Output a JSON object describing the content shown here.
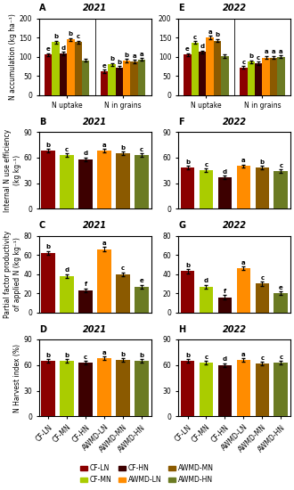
{
  "chart_data": [
    {
      "type": "bar",
      "title": "2021",
      "annotations": [
        "A"
      ],
      "y_label": "N accumulation (kg ha⁻¹)",
      "categories": [
        "N uptake",
        "N in grains"
      ],
      "series": [
        {
          "name": "CF-LN",
          "color": "#8B0000",
          "values": [
            105,
            62
          ],
          "errors": [
            4,
            4
          ],
          "letters": [
            "e",
            "e"
          ]
        },
        {
          "name": "CF-MN",
          "color": "#AACC00",
          "values": [
            138,
            80
          ],
          "errors": [
            4,
            4
          ],
          "letters": [
            "b",
            "b"
          ]
        },
        {
          "name": "CF-HN",
          "color": "#3D0000",
          "values": [
            108,
            72
          ],
          "errors": [
            4,
            4
          ],
          "letters": [
            "d",
            "b"
          ]
        },
        {
          "name": "AWMD-LN",
          "color": "#FF8C00",
          "values": [
            145,
            90
          ],
          "errors": [
            4,
            4
          ],
          "letters": [
            "b",
            "b"
          ]
        },
        {
          "name": "AWMD-MN",
          "color": "#8B5A00",
          "values": [
            138,
            88
          ],
          "errors": [
            4,
            4
          ],
          "letters": [
            "c",
            "a"
          ]
        },
        {
          "name": "AWMD-HN",
          "color": "#6B7B23",
          "values": [
            91,
            93
          ],
          "errors": [
            4,
            4
          ],
          "letters": [
            null,
            "a"
          ]
        }
      ],
      "ylim": [
        0,
        200
      ],
      "yticks": [
        0,
        50,
        100,
        150,
        200
      ],
      "grid": false,
      "legend": "lower center"
    },
    {
      "type": "bar",
      "title": "2022",
      "annotations": [
        "E"
      ],
      "categories": [
        "N uptake",
        "N in grains"
      ],
      "series": [
        {
          "name": "CF-LN",
          "color": "#8B0000",
          "values": [
            105,
            72
          ],
          "errors": [
            4,
            4
          ],
          "letters": [
            "e",
            "c"
          ]
        },
        {
          "name": "CF-MN",
          "color": "#AACC00",
          "values": [
            137,
            87
          ],
          "errors": [
            4,
            4
          ],
          "letters": [
            "c",
            "b"
          ]
        },
        {
          "name": "CF-HN",
          "color": "#3D0000",
          "values": [
            112,
            83
          ],
          "errors": [
            4,
            4
          ],
          "letters": [
            "d",
            "c"
          ]
        },
        {
          "name": "AWMD-LN",
          "color": "#FF8C00",
          "values": [
            150,
            98
          ],
          "errors": [
            4,
            4
          ],
          "letters": [
            "a",
            "a"
          ]
        },
        {
          "name": "AWMD-MN",
          "color": "#8B5A00",
          "values": [
            142,
            98
          ],
          "errors": [
            4,
            4
          ],
          "letters": [
            "b",
            "a"
          ]
        },
        {
          "name": "AWMD-HN",
          "color": "#6B7B23",
          "values": [
            102,
            100
          ],
          "errors": [
            4,
            4
          ],
          "letters": [
            null,
            "a"
          ]
        }
      ],
      "ylim": [
        0,
        200
      ],
      "yticks": [
        0,
        50,
        100,
        150,
        200
      ],
      "grid": false
    },
    {
      "type": "bar",
      "title": "2021",
      "annotations": [
        "B"
      ],
      "y_label": "Internal N use efficiency\n(kg kg⁻¹)",
      "categories": [
        null,
        null,
        null,
        null,
        null,
        null
      ],
      "tick_labels": "y",
      "values": [
        68,
        63,
        58,
        68,
        65,
        63
      ],
      "errors": [
        2,
        2,
        2,
        2,
        2,
        2
      ],
      "letters": [
        "b",
        "c",
        "d",
        "a",
        "b",
        "c"
      ],
      "colors": [
        "#8B0000",
        "#AACC00",
        "#3D0000",
        "#FF8C00",
        "#8B5A00",
        "#6B7B23"
      ],
      "ylim": [
        0,
        90
      ],
      "yticks": [
        0,
        30,
        60,
        90
      ],
      "grid": false
    },
    {
      "type": "bar",
      "title": "2022",
      "annotations": [
        "F"
      ],
      "categories": [
        null,
        null,
        null,
        null,
        null,
        null
      ],
      "tick_labels": "y",
      "values": [
        48,
        45,
        37,
        50,
        48,
        44
      ],
      "errors": [
        2,
        2,
        2,
        2,
        2,
        2
      ],
      "letters": [
        "b",
        "c",
        "d",
        "a",
        "b",
        "c"
      ],
      "colors": [
        "#8B0000",
        "#AACC00",
        "#3D0000",
        "#FF8C00",
        "#8B5A00",
        "#6B7B23"
      ],
      "ylim": [
        0,
        90
      ],
      "yticks": [
        0,
        30,
        60,
        90
      ],
      "grid": false
    },
    {
      "type": "bar",
      "title": "2021",
      "annotations": [
        "C"
      ],
      "y_label": "Partial factor productivity\nof applied N (kg kg⁻¹)",
      "categories": [
        null,
        null,
        null,
        null,
        null,
        null
      ],
      "tick_labels": "y",
      "values": [
        62,
        38,
        23,
        66,
        40,
        27
      ],
      "errors": [
        2,
        2,
        2,
        2,
        2,
        2
      ],
      "letters": [
        "b",
        "d",
        "f",
        "a",
        "c",
        "e"
      ],
      "colors": [
        "#8B0000",
        "#AACC00",
        "#3D0000",
        "#FF8C00",
        "#8B5A00",
        "#6B7B23"
      ],
      "ylim": [
        0,
        80
      ],
      "yticks": [
        0,
        20,
        40,
        60,
        80
      ],
      "grid": false
    },
    {
      "type": "bar",
      "title": "2022",
      "annotations": [
        "G"
      ],
      "categories": [
        null,
        null,
        null,
        null,
        null,
        null
      ],
      "tick_labels": "y",
      "values": [
        43,
        27,
        16,
        46,
        30,
        20
      ],
      "errors": [
        2,
        2,
        2,
        2,
        2,
        2
      ],
      "letters": [
        "b",
        "d",
        "f",
        "a",
        "c",
        "e"
      ],
      "colors": [
        "#8B0000",
        "#AACC00",
        "#3D0000",
        "#FF8C00",
        "#8B5A00",
        "#6B7B23"
      ],
      "ylim": [
        0,
        80
      ],
      "yticks": [
        0,
        20,
        40,
        60,
        80
      ],
      "grid": false
    },
    {
      "type": "bar",
      "title": "2021",
      "annotations": [
        "D"
      ],
      "y_label": "N Harvest index (%)",
      "categories": [
        "CF-LN",
        "CF-MN",
        "CF-HN",
        "AWMD-LN",
        "AWMD-MN",
        "AWMD-HN"
      ],
      "values": [
        65,
        65,
        63,
        68,
        66,
        65
      ],
      "errors": [
        2,
        2,
        2,
        2,
        2,
        2
      ],
      "letters": [
        "b",
        "b",
        "c",
        "a",
        "b",
        "b"
      ],
      "colors": [
        "#8B0000",
        "#AACC00",
        "#3D0000",
        "#FF8C00",
        "#8B5A00",
        "#6B7B23"
      ],
      "ylim": [
        0,
        90
      ],
      "yticks": [
        0,
        30,
        60,
        90
      ],
      "grid": false
    },
    {
      "type": "bar",
      "title": "2022",
      "annotations": [
        "H"
      ],
      "categories": [
        "CF-LN",
        "CF-MN",
        "CF-HN",
        "AWMD-LN",
        "AWMD-MN",
        "AWMD-HN"
      ],
      "values": [
        65,
        63,
        60,
        66,
        62,
        63
      ],
      "errors": [
        2,
        2,
        2,
        2,
        2,
        2
      ],
      "letters": [
        "b",
        "c",
        "d",
        "a",
        "c",
        "c"
      ],
      "colors": [
        "#8B0000",
        "#AACC00",
        "#3D0000",
        "#FF8C00",
        "#8B5A00",
        "#6B7B23"
      ],
      "ylim": [
        0,
        90
      ],
      "yticks": [
        0,
        30,
        60,
        90
      ],
      "grid": false
    }
  ]
}
